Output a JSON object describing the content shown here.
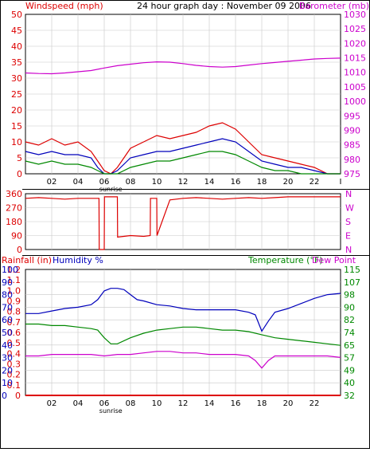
{
  "colors": {
    "red": "#dd0000",
    "green": "#008800",
    "blue": "#0000bb",
    "magenta": "#cc00cc",
    "grid": "#c8c8c8",
    "frame": "#000000"
  },
  "chart_data": [
    {
      "type": "line",
      "panel": "wind-barometer",
      "title": "24 hour graph day : November 09 2006",
      "ylabel_left": "Windspeed (mph)",
      "ylabel_right": "Barometer (mb)",
      "xlim": [
        0,
        24
      ],
      "ylim_left": [
        0,
        50
      ],
      "ylim_right": [
        975,
        1030
      ],
      "yticks_left": [
        "0",
        "5",
        "10",
        "15",
        "20",
        "25",
        "30",
        "35",
        "40",
        "45",
        "50"
      ],
      "yticks_right": [
        "975",
        "980",
        "985",
        "990",
        "995",
        "1000",
        "1005",
        "1010",
        "1015",
        "1020",
        "1025",
        "1030"
      ],
      "xticks": [
        "02",
        "04",
        "06",
        "08",
        "10",
        "12",
        "14",
        "16",
        "18",
        "20",
        "22",
        "I"
      ],
      "sunrise_label": "sunrise",
      "sunrise_hour": 6.5,
      "grid": true,
      "series": [
        {
          "axis": "right",
          "color": "magenta",
          "x": [
            0,
            1,
            2,
            3,
            4,
            5,
            6,
            7,
            8,
            9,
            10,
            11,
            12,
            13,
            14,
            15,
            16,
            17,
            18,
            19,
            20,
            21,
            22,
            23,
            24
          ],
          "values": [
            1009.8,
            1009.6,
            1009.5,
            1009.8,
            1010.2,
            1010.6,
            1011.5,
            1012.3,
            1012.8,
            1013.3,
            1013.6,
            1013.5,
            1013.0,
            1012.4,
            1012.0,
            1011.8,
            1012.0,
            1012.5,
            1013.0,
            1013.4,
            1013.8,
            1014.2,
            1014.6,
            1014.8,
            1014.9
          ]
        },
        {
          "axis": "left",
          "color": "red",
          "x": [
            0,
            1,
            2,
            3,
            4,
            5,
            5.5,
            6,
            6.5,
            7,
            8,
            9,
            10,
            11,
            12,
            13,
            14,
            15,
            16,
            17,
            18,
            19,
            20,
            21,
            22,
            23,
            24
          ],
          "values": [
            10,
            9,
            11,
            9,
            10,
            7,
            4,
            1,
            0,
            2,
            8,
            10,
            12,
            11,
            12,
            13,
            15,
            16,
            14,
            10,
            6,
            5,
            4,
            3,
            2,
            0,
            0
          ]
        },
        {
          "axis": "left",
          "color": "blue",
          "x": [
            0,
            1,
            2,
            3,
            4,
            5,
            5.5,
            6,
            6.5,
            7,
            8,
            9,
            10,
            11,
            12,
            13,
            14,
            15,
            16,
            17,
            18,
            19,
            20,
            21,
            22,
            23,
            24
          ],
          "values": [
            7,
            6,
            7,
            6,
            6,
            5,
            2,
            0,
            0,
            1,
            5,
            6,
            7,
            7,
            8,
            9,
            10,
            11,
            10,
            7,
            4,
            3,
            2,
            2,
            1,
            0,
            0
          ]
        },
        {
          "axis": "left",
          "color": "green",
          "x": [
            0,
            1,
            2,
            3,
            4,
            5,
            5.5,
            6,
            6.5,
            7,
            8,
            9,
            10,
            11,
            12,
            13,
            14,
            15,
            16,
            17,
            18,
            19,
            20,
            21,
            22,
            23,
            24
          ],
          "values": [
            4,
            3,
            4,
            3,
            3,
            2,
            1,
            0,
            0,
            0,
            2,
            3,
            4,
            4,
            5,
            6,
            7,
            7,
            6,
            4,
            2,
            1,
            1,
            0,
            0,
            0,
            0
          ]
        }
      ]
    },
    {
      "type": "line",
      "panel": "wind-direction",
      "ylim": [
        0,
        360
      ],
      "yticks_left": [
        "0",
        "90",
        "180",
        "270",
        "360"
      ],
      "yticks_right": [
        "N",
        "E",
        "S",
        "W",
        "N"
      ],
      "xlim": [
        0,
        24
      ],
      "grid": true,
      "series": [
        {
          "axis": "left",
          "color": "red",
          "x": [
            0,
            1,
            2,
            3,
            4,
            5,
            5.6,
            5.62,
            6.0,
            6.02,
            7.0,
            7.02,
            8,
            9,
            9.5,
            9.52,
            10.0,
            10.02,
            11,
            12,
            13,
            14,
            15,
            16,
            17,
            18,
            19,
            20,
            21,
            22,
            23,
            24
          ],
          "values": [
            330,
            335,
            330,
            325,
            330,
            330,
            330,
            0,
            0,
            340,
            340,
            80,
            90,
            85,
            90,
            330,
            330,
            90,
            320,
            330,
            335,
            330,
            325,
            330,
            335,
            330,
            335,
            340,
            340,
            340,
            340,
            340
          ]
        }
      ]
    },
    {
      "type": "line",
      "panel": "rain-humidity-temperature",
      "ylabel_left": "Rainfall (in)",
      "ylabel_humidity": "Humidity %",
      "ylabel_right": "Temperature (°F)",
      "ylabel_right2": "Dew Point",
      "xlim": [
        0,
        24
      ],
      "ylim_rain": [
        0,
        1.2
      ],
      "ylim_humidity": [
        0,
        100
      ],
      "ylim_temp": [
        32,
        115
      ],
      "yticks_rain": [
        "0",
        "0.1",
        "0.2",
        "0.3",
        "0.4",
        "0.5",
        "0.6",
        "0.7",
        "0.8",
        "0.9",
        "1.0",
        "1.1",
        "1.2"
      ],
      "yticks_humidity": [
        "0",
        "10",
        "20",
        "30",
        "40",
        "50",
        "60",
        "70",
        "80",
        "90",
        "100"
      ],
      "yticks_temp": [
        "32",
        "40",
        "49",
        "57",
        "65",
        "74",
        "82",
        "90",
        "98",
        "107",
        "115"
      ],
      "xticks": [
        "02",
        "04",
        "06",
        "08",
        "10",
        "12",
        "14",
        "16",
        "18",
        "20",
        "22"
      ],
      "sunrise_label": "sunrise",
      "sunrise_hour": 6.5,
      "grid": true,
      "series": [
        {
          "axis": "humidity",
          "color": "blue",
          "x": [
            0,
            1,
            2,
            3,
            4,
            5,
            5.5,
            6,
            6.5,
            7,
            7.5,
            8,
            8.5,
            9,
            10,
            11,
            12,
            13,
            14,
            15,
            16,
            17,
            17.5,
            18,
            18.5,
            19,
            20,
            21,
            22,
            23,
            24
          ],
          "values": [
            65,
            65,
            67,
            69,
            70,
            72,
            76,
            83,
            85,
            85,
            84,
            80,
            76,
            75,
            72,
            71,
            69,
            68,
            68,
            68,
            68,
            66,
            64,
            51,
            59,
            66,
            69,
            73,
            77,
            80,
            81
          ]
        },
        {
          "axis": "temp",
          "color": "green",
          "x": [
            0,
            1,
            2,
            3,
            4,
            5,
            5.5,
            6,
            6.5,
            7,
            8,
            9,
            10,
            11,
            12,
            13,
            14,
            15,
            16,
            17,
            18,
            19,
            20,
            21,
            22,
            23,
            24
          ],
          "values": [
            79,
            79,
            78,
            78,
            77,
            76,
            75,
            70,
            66,
            66,
            70,
            73,
            75,
            76,
            77,
            77,
            76,
            75,
            75,
            74,
            72,
            70,
            69,
            68,
            67,
            66,
            65
          ]
        },
        {
          "axis": "temp",
          "color": "magenta",
          "x": [
            0,
            1,
            2,
            3,
            4,
            5,
            6,
            7,
            8,
            9,
            10,
            11,
            12,
            13,
            14,
            15,
            16,
            17,
            17.5,
            18,
            18.5,
            19,
            20,
            21,
            22,
            23,
            24
          ],
          "values": [
            58,
            58,
            59,
            59,
            59,
            59,
            58,
            59,
            59,
            60,
            61,
            61,
            60,
            60,
            59,
            59,
            59,
            58,
            55,
            50,
            55,
            58,
            58,
            58,
            58,
            58,
            57
          ]
        },
        {
          "axis": "rain",
          "color": "red",
          "x": [
            0,
            24
          ],
          "values": [
            0,
            0
          ]
        }
      ]
    }
  ]
}
